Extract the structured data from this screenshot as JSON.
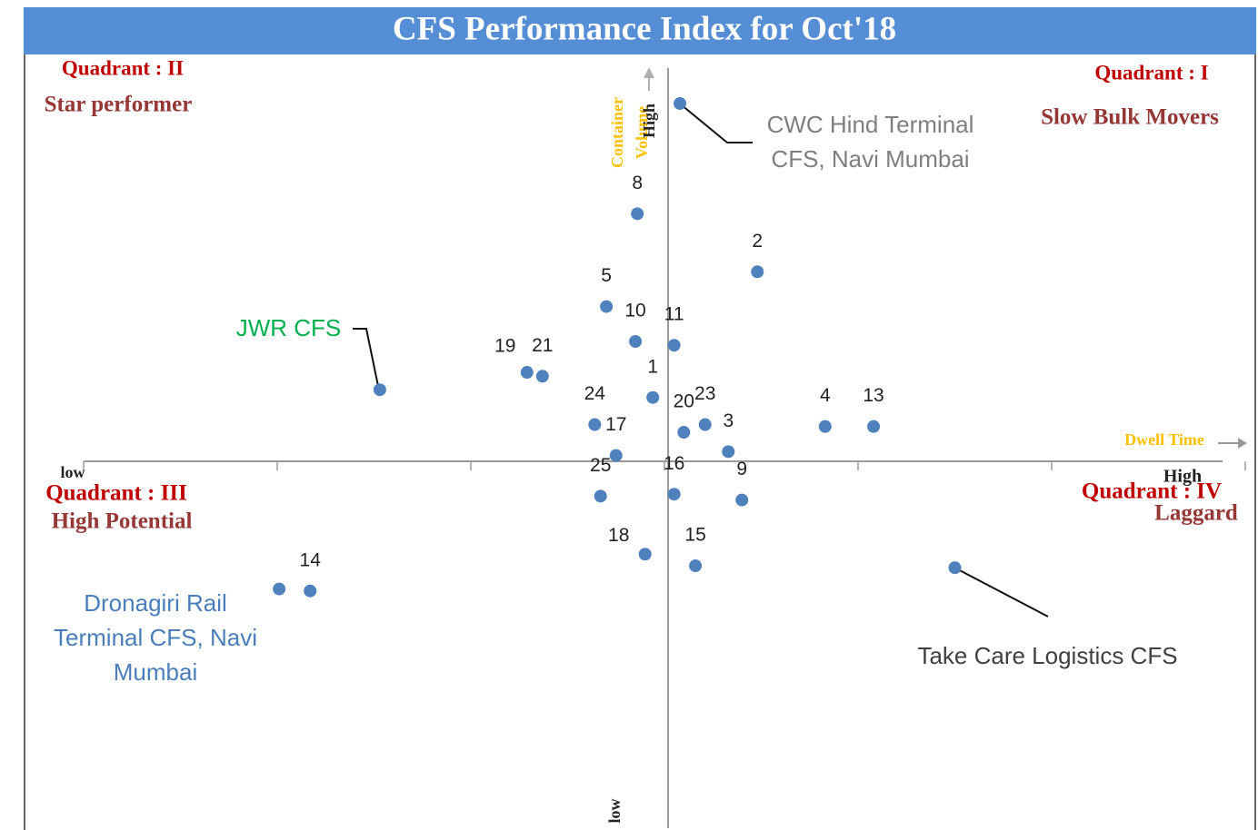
{
  "chart_data": {
    "type": "scatter",
    "title": "CFS Performance Index for Oct'18",
    "x_axis_label": "Dwell Time",
    "y_axis_label": "Container Volume",
    "x_low": "low",
    "x_high": "High",
    "y_low": "low",
    "y_high": "High",
    "quadrants": [
      {
        "title": "Quadrant : I",
        "subtitle": "Slow Bulk Movers"
      },
      {
        "title": "Quadrant : II",
        "subtitle": "Star performer"
      },
      {
        "title": "Quadrant : III",
        "subtitle": "High Potential"
      },
      {
        "title": "Quadrant : IV",
        "subtitle": "Laggard"
      }
    ],
    "xlim": [
      -3,
      3
    ],
    "xticks": [
      -3,
      -2,
      -1,
      0,
      1,
      2,
      3
    ],
    "ylim": [
      -1.9,
      2.05
    ],
    "color": "#4f81bd",
    "x": [
      0.08,
      -0.14,
      0.48,
      -0.3,
      -0.15,
      0.05,
      -0.71,
      -0.63,
      -1.47,
      -0.06,
      -0.36,
      -0.25,
      0.1,
      0.21,
      0.33,
      0.83,
      1.08,
      -0.33,
      0.05,
      0.4,
      -0.1,
      0.16,
      -1.83,
      -1.99,
      1.5
    ],
    "values": [
      1.85,
      1.28,
      0.98,
      0.8,
      0.62,
      0.6,
      0.46,
      0.44,
      0.37,
      0.33,
      0.19,
      0.03,
      0.15,
      0.19,
      0.05,
      0.18,
      0.18,
      -0.18,
      -0.17,
      -0.2,
      -0.48,
      -0.54,
      -0.67,
      -0.66,
      -0.55
    ],
    "point_labels": [
      "CWC Hind Terminal CFS, Navi Mumbai",
      "8",
      "2",
      "5",
      "10",
      "11",
      "19",
      "21",
      "JWR CFS",
      "1",
      "24",
      "17",
      "20",
      "23",
      "3",
      "4",
      "13",
      "25",
      "16",
      "9",
      "18",
      "15",
      "14",
      "Dronagiri Rail Terminal CFS, Navi Mumbai",
      "Take Care Logistics CFS"
    ],
    "point_label_colors": [
      "#7f7f7f",
      "#222222",
      "#222222",
      "#222222",
      "#222222",
      "#222222",
      "#222222",
      "#222222",
      "#00b050",
      "#222222",
      "#222222",
      "#222222",
      "#222222",
      "#222222",
      "#222222",
      "#222222",
      "#222222",
      "#222222",
      "#222222",
      "#222222",
      "#222222",
      "#222222",
      "#222222",
      "#4a7ebb",
      "#404040"
    ]
  }
}
